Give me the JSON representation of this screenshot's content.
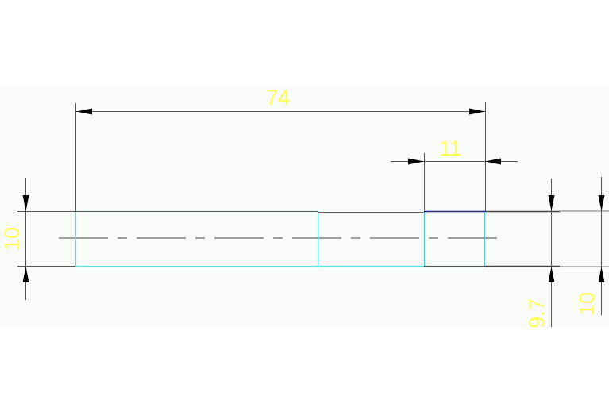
{
  "colors": {
    "background": "#ffffff",
    "drawing_area": "#f9fbf9",
    "dimension_text": "#ffff55",
    "dimension_line": "#555555",
    "part_outline": "#55e5e5",
    "highlight_edge": "#2a2a8a"
  },
  "dimensions": {
    "overall_length": "74",
    "collar_width": "11",
    "left_diameter": "10",
    "right_diameter_inner": "9.7",
    "right_diameter_outer": "10"
  }
}
